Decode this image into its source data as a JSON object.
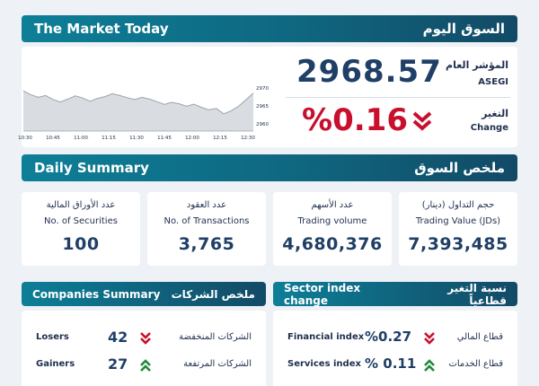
{
  "header": {
    "title_en": "The Market Today",
    "title_ar": "السوق اليوم"
  },
  "index": {
    "label_ar": "المؤشر العام",
    "label_en": "ASEGI",
    "value": "2968.57",
    "change_label_ar": "التغير",
    "change_label_en": "Change",
    "change_value": "%0.16",
    "direction": "down"
  },
  "chart_data": {
    "type": "line",
    "x_ticks": [
      "10:30",
      "10:45",
      "11:00",
      "11:15",
      "11:30",
      "11:45",
      "12:00",
      "12:15",
      "12:30"
    ],
    "y_ticks": [
      "2970",
      "2965",
      "2960"
    ],
    "ylim": [
      2958,
      2972
    ],
    "series": [
      {
        "values": [
          2969.2,
          2968.1,
          2967.4,
          2967.9,
          2966.8,
          2966.1,
          2966.9,
          2967.8,
          2967.2,
          2966.3,
          2967.1,
          2967.6,
          2968.4,
          2967.9,
          2967.3,
          2966.8,
          2967.4,
          2966.9,
          2966.2,
          2965.4,
          2966.0,
          2965.6,
          2964.9,
          2965.5,
          2964.6,
          2963.9,
          2964.3,
          2962.8,
          2963.6,
          2964.9,
          2966.7,
          2968.6
        ]
      }
    ],
    "color": "#9aa3ad"
  },
  "daily": {
    "title_en": "Daily Summary",
    "title_ar": "ملخص السوق",
    "cards": [
      {
        "ar": "عدد الأوراق المالية",
        "en": "No. of Securities",
        "value": "100"
      },
      {
        "ar": "عدد العقود",
        "en": "No. of Transactions",
        "value": "3,765"
      },
      {
        "ar": "عدد الأسهم",
        "en": "Trading volume",
        "value": "4,680,376"
      },
      {
        "ar": "حجم التداول (دينار)",
        "en": "Trading Value (JDs)",
        "value": "7,393,485"
      }
    ]
  },
  "companies": {
    "title_en": "Companies Summary",
    "title_ar": "ملخص الشركات",
    "rows": [
      {
        "en": "Losers",
        "value": "42",
        "ar": "الشركات المنخفضة",
        "direction": "down"
      },
      {
        "en": "Gainers",
        "value": "27",
        "ar": "الشركات المرتفعة",
        "direction": "up"
      }
    ]
  },
  "sectors": {
    "title_en": "Sector index change",
    "title_ar": "نسبة التغير قطاعياً",
    "rows": [
      {
        "en": "Financial index",
        "value": "%0.27",
        "ar": "قطاع المالي",
        "direction": "down"
      },
      {
        "en": "Services index",
        "value": "% 0.11",
        "ar": "قطاع الخدمات",
        "direction": "up"
      }
    ]
  },
  "colors": {
    "down": "#c8102e",
    "up": "#1e8a3c",
    "accent": "#0f6780"
  }
}
